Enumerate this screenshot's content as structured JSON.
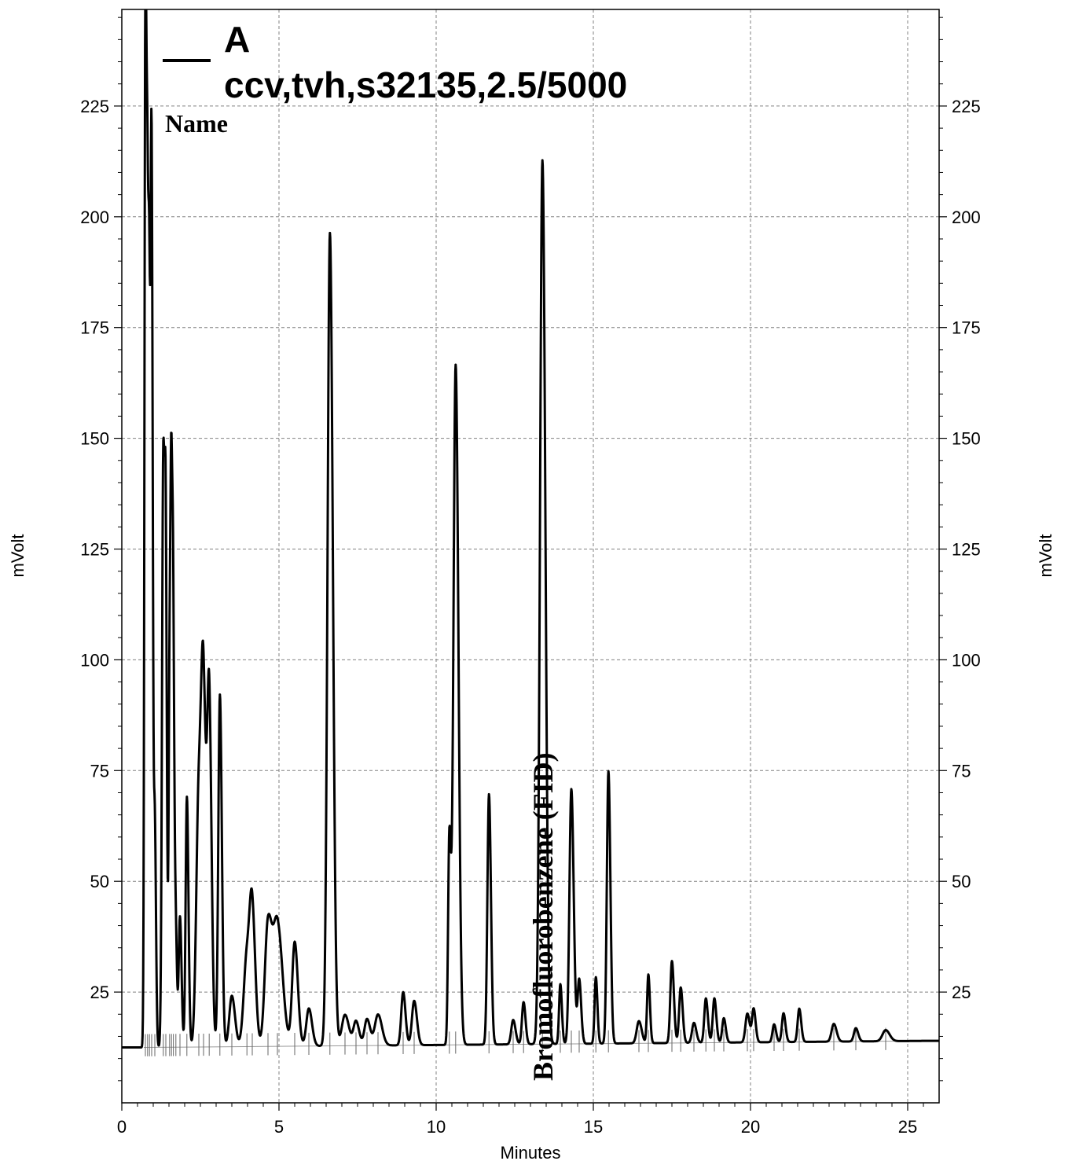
{
  "chart_data": {
    "type": "line",
    "xlabel": "Minutes",
    "ylabel": "mVolt",
    "xlim": [
      0,
      26
    ],
    "ylim": [
      0,
      247
    ],
    "x_ticks": [
      "0",
      "5",
      "10",
      "15",
      "20",
      "25"
    ],
    "y_ticks": [
      "25",
      "50",
      "75",
      "100",
      "125",
      "150",
      "175",
      "200",
      "225"
    ],
    "grid": true,
    "legend": {
      "letter": "A",
      "description": "ccv,tvh,s32135,2.5/5000",
      "name_header": "Name"
    },
    "annotations": [
      {
        "text": "Bromofluorobenzene (FID)",
        "x": 13.4
      }
    ],
    "series": [
      {
        "baseline": 12.5,
        "baseline_end": 14,
        "peaks": [
          [
            0.75,
            247,
            0.03
          ],
          [
            0.82,
            160,
            0.03
          ],
          [
            0.88,
            140,
            0.03
          ],
          [
            0.95,
            198,
            0.03
          ],
          [
            1.05,
            62,
            0.03
          ],
          [
            1.32,
            147,
            0.04
          ],
          [
            1.4,
            100,
            0.03
          ],
          [
            1.52,
            95,
            0.03
          ],
          [
            1.58,
            118,
            0.03
          ],
          [
            1.64,
            88,
            0.03
          ],
          [
            1.72,
            36,
            0.03
          ],
          [
            1.85,
            42,
            0.04
          ],
          [
            2.07,
            69,
            0.04
          ],
          [
            2.45,
            70,
            0.08
          ],
          [
            2.6,
            82,
            0.07
          ],
          [
            2.78,
            88,
            0.06
          ],
          [
            3.12,
            92,
            0.05
          ],
          [
            3.5,
            24,
            0.08
          ],
          [
            3.98,
            33,
            0.1
          ],
          [
            4.15,
            39,
            0.08
          ],
          [
            4.65,
            40,
            0.1
          ],
          [
            4.95,
            40,
            0.13
          ],
          [
            5.5,
            36,
            0.08
          ],
          [
            5.95,
            21,
            0.08
          ],
          [
            6.62,
            196,
            0.075
          ],
          [
            7.1,
            19.5,
            0.1
          ],
          [
            7.45,
            18,
            0.08
          ],
          [
            7.8,
            18.5,
            0.08
          ],
          [
            8.15,
            19.5,
            0.1
          ],
          [
            8.95,
            24.5,
            0.06
          ],
          [
            9.3,
            22.5,
            0.07
          ],
          [
            10.42,
            59,
            0.04
          ],
          [
            10.62,
            166,
            0.07
          ],
          [
            11.68,
            69,
            0.05
          ],
          [
            12.45,
            18,
            0.06
          ],
          [
            12.78,
            22,
            0.05
          ],
          [
            13.38,
            212,
            0.075
          ],
          [
            13.95,
            26,
            0.04
          ],
          [
            14.3,
            70,
            0.06
          ],
          [
            14.55,
            27,
            0.05
          ],
          [
            15.08,
            27.5,
            0.04
          ],
          [
            15.48,
            74,
            0.05
          ],
          [
            16.45,
            17.5,
            0.07
          ],
          [
            16.75,
            28,
            0.04
          ],
          [
            17.5,
            31,
            0.05
          ],
          [
            17.78,
            25,
            0.05
          ],
          [
            18.2,
            17,
            0.06
          ],
          [
            18.58,
            22.5,
            0.05
          ],
          [
            18.85,
            22.5,
            0.05
          ],
          [
            19.15,
            18,
            0.05
          ],
          [
            19.9,
            19,
            0.06
          ],
          [
            20.1,
            20,
            0.05
          ],
          [
            20.75,
            16.5,
            0.05
          ],
          [
            21.05,
            19,
            0.05
          ],
          [
            21.55,
            20,
            0.05
          ],
          [
            22.65,
            16.5,
            0.07
          ],
          [
            23.35,
            15.5,
            0.06
          ],
          [
            24.3,
            15,
            0.1
          ]
        ]
      }
    ]
  }
}
